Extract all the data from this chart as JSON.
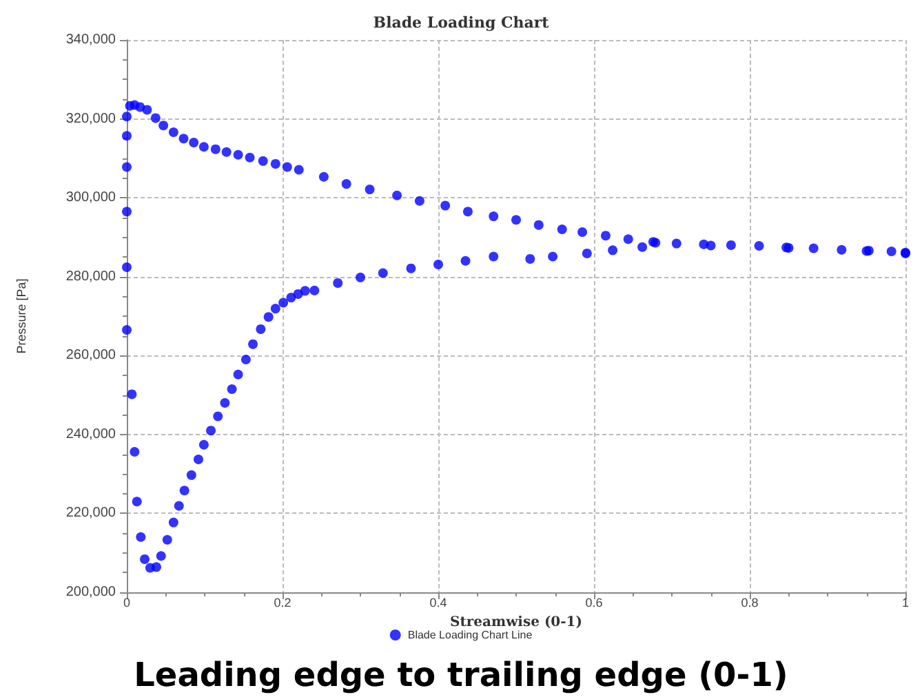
{
  "chart_data": {
    "type": "scatter",
    "title": "Blade Loading Chart",
    "xlabel": "Streamwise (0-1)",
    "ylabel": "Pressure [Pa]",
    "annotations": [
      "Leading edge to trailing edge (0-1)"
    ],
    "xlim": [
      0,
      1
    ],
    "xticks": [
      0,
      0.2,
      0.4,
      0.6,
      0.8,
      1
    ],
    "ylim": [
      200000,
      340000
    ],
    "yticks": [
      {
        "value": 200000,
        "label": "200,000"
      },
      {
        "value": 220000,
        "label": "220,000"
      },
      {
        "value": 240000,
        "label": "240,000"
      },
      {
        "value": 260000,
        "label": "260,000"
      },
      {
        "value": 280000,
        "label": "280,000"
      },
      {
        "value": 300000,
        "label": "300,000"
      },
      {
        "value": 320000,
        "label": "320,000"
      },
      {
        "value": 340000,
        "label": "340,000"
      }
    ],
    "grid": true,
    "legend": "bottom",
    "marker": "circle",
    "series": [
      {
        "name": "Blade Loading Chart Line",
        "color": "#0000ff",
        "x": [
          0,
          0,
          0,
          0,
          0,
          0,
          0.0065,
          0.01,
          0.013,
          0.018,
          0.023,
          0.03,
          0.038,
          0.044,
          0.052,
          0.06,
          0.067,
          0.074,
          0.083,
          0.092,
          0.099,
          0.108,
          0.117,
          0.126,
          0.135,
          0.143,
          0.153,
          0.162,
          0.172,
          0.182,
          0.191,
          0.201,
          0.211,
          0.22,
          0.229,
          0.241,
          0.271,
          0.3,
          0.329,
          0.365,
          0.4,
          0.435,
          0.471,
          0.518,
          0.547,
          0.591,
          0.624,
          0.662,
          0.679,
          0.75,
          0.85,
          0.95,
          1,
          0.004,
          0.01,
          0.017,
          0.026,
          0.037,
          0.047,
          0.06,
          0.073,
          0.086,
          0.099,
          0.114,
          0.128,
          0.143,
          0.158,
          0.175,
          0.191,
          0.206,
          0.221,
          0.253,
          0.282,
          0.312,
          0.347,
          0.376,
          0.409,
          0.438,
          0.471,
          0.5,
          0.529,
          0.559,
          0.585,
          0.615,
          0.644,
          0.676,
          0.706,
          0.741,
          0.776,
          0.812,
          0.847,
          0.882,
          0.918,
          0.953,
          0.982,
          1
        ],
        "values": [
          320600,
          315700,
          307800,
          296500,
          282400,
          266500,
          250200,
          235600,
          223000,
          214000,
          208400,
          206200,
          206400,
          209200,
          213300,
          217700,
          221900,
          225800,
          229700,
          233700,
          237400,
          241000,
          244600,
          248000,
          251500,
          255200,
          259000,
          262900,
          266700,
          269800,
          271900,
          273400,
          274700,
          275600,
          276400,
          276500,
          278400,
          279800,
          280900,
          282100,
          283100,
          284000,
          285100,
          284500,
          285100,
          285900,
          286700,
          287500,
          288600,
          287900,
          287300,
          286500,
          285900,
          323300,
          323500,
          323000,
          322300,
          320200,
          318300,
          316600,
          315000,
          314000,
          312900,
          312300,
          311600,
          310900,
          310200,
          309300,
          308600,
          307800,
          307100,
          305300,
          303500,
          302100,
          300600,
          299200,
          298000,
          296500,
          295300,
          294400,
          293100,
          292000,
          291300,
          290400,
          289500,
          288800,
          288400,
          288200,
          288000,
          287800,
          287400,
          287200,
          286800,
          286600,
          286400,
          286100
        ]
      }
    ]
  }
}
